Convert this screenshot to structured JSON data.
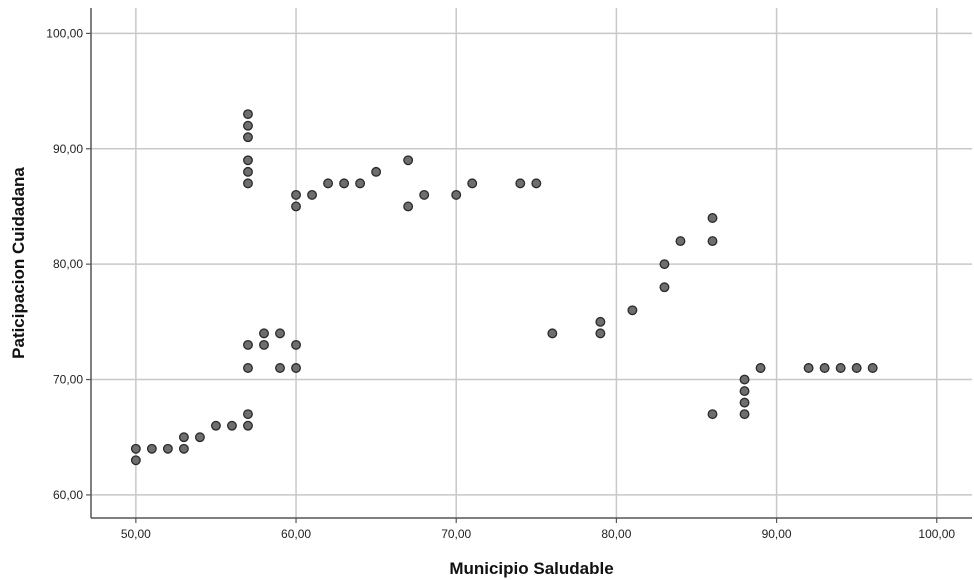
{
  "chart_data": {
    "type": "scatter",
    "xlabel": "Municipio Saludable",
    "ylabel": "Paticipacion Cuidadana",
    "xlim": [
      47.2,
      102.2
    ],
    "ylim": [
      58.0,
      102.2
    ],
    "x_ticks": [
      50,
      60,
      70,
      80,
      90,
      100
    ],
    "y_ticks": [
      60,
      70,
      80,
      90,
      100
    ],
    "x_tick_labels": [
      "50,00",
      "60,00",
      "70,00",
      "80,00",
      "90,00",
      "100,00"
    ],
    "y_tick_labels": [
      "60,00",
      "70,00",
      "80,00",
      "90,00",
      "100,00"
    ],
    "grid": true,
    "series": [
      {
        "marker_color": "#6e6e6e",
        "points": [
          [
            50,
            64
          ],
          [
            50,
            63
          ],
          [
            51,
            64
          ],
          [
            52,
            64
          ],
          [
            53,
            65
          ],
          [
            53,
            64
          ],
          [
            54,
            65
          ],
          [
            55,
            66
          ],
          [
            56,
            66
          ],
          [
            57,
            93
          ],
          [
            57,
            92
          ],
          [
            57,
            91
          ],
          [
            57,
            89
          ],
          [
            57,
            88
          ],
          [
            57,
            87
          ],
          [
            57,
            73
          ],
          [
            57,
            71
          ],
          [
            57,
            67
          ],
          [
            57,
            66
          ],
          [
            58,
            74
          ],
          [
            58,
            73
          ],
          [
            59,
            74
          ],
          [
            59,
            71
          ],
          [
            60,
            73
          ],
          [
            60,
            71
          ],
          [
            60,
            86
          ],
          [
            60,
            85
          ],
          [
            61,
            86
          ],
          [
            62,
            87
          ],
          [
            63,
            87
          ],
          [
            64,
            87
          ],
          [
            65,
            88
          ],
          [
            67,
            89
          ],
          [
            67,
            85
          ],
          [
            68,
            86
          ],
          [
            70,
            86
          ],
          [
            71,
            87
          ],
          [
            74,
            87
          ],
          [
            75,
            87
          ],
          [
            76,
            74
          ],
          [
            79,
            75
          ],
          [
            79,
            74
          ],
          [
            81,
            76
          ],
          [
            83,
            80
          ],
          [
            83,
            78
          ],
          [
            84,
            82
          ],
          [
            86,
            84
          ],
          [
            86,
            82
          ],
          [
            86,
            67
          ],
          [
            88,
            70
          ],
          [
            88,
            69
          ],
          [
            88,
            68
          ],
          [
            88,
            67
          ],
          [
            89,
            71
          ],
          [
            92,
            71
          ],
          [
            93,
            71
          ],
          [
            94,
            71
          ],
          [
            95,
            71
          ],
          [
            96,
            71
          ]
        ]
      }
    ]
  }
}
